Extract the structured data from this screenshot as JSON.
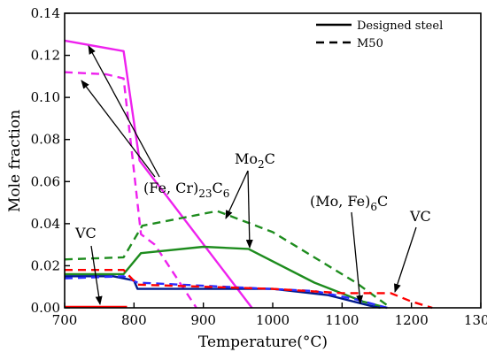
{
  "chart_data": {
    "type": "line",
    "xlabel": "Temperature(°C)",
    "ylabel": "Mole fraction",
    "xlim": [
      700,
      1300
    ],
    "ylim": [
      0,
      0.14
    ],
    "x_ticks": [
      "700",
      "800",
      "900",
      "1000",
      "1100",
      "1200",
      "1300"
    ],
    "y_ticks": [
      "0.00",
      "0.02",
      "0.04",
      "0.06",
      "0.08",
      "0.10",
      "0.12",
      "0.14"
    ],
    "grid": false,
    "legend": {
      "position": "top-right",
      "entries": [
        {
          "label": "Designed steel",
          "style": "solid"
        },
        {
          "label": "M50",
          "style": "dashed"
        }
      ]
    },
    "series": [
      {
        "key": "designed_fecr23c6",
        "style": "solid",
        "color": "#ee22ee",
        "x": [
          700,
          785,
          808,
          970
        ],
        "y": [
          0.127,
          0.122,
          0.07,
          0.0
        ]
      },
      {
        "key": "m50_fecr23c6",
        "style": "dashed",
        "color": "#ee22ee",
        "x": [
          700,
          760,
          785,
          800,
          810,
          830,
          890
        ],
        "y": [
          0.112,
          0.111,
          0.109,
          0.065,
          0.035,
          0.03,
          0.0
        ]
      },
      {
        "key": "designed_mo2c",
        "style": "solid",
        "color": "#1e8c1e",
        "x": [
          700,
          785,
          810,
          900,
          965,
          1060,
          1130,
          1165
        ],
        "y": [
          0.016,
          0.016,
          0.026,
          0.029,
          0.028,
          0.012,
          0.003,
          0.0
        ]
      },
      {
        "key": "m50_mo2c",
        "style": "dashed",
        "color": "#1e8c1e",
        "x": [
          700,
          785,
          812,
          920,
          1000,
          1120,
          1170
        ],
        "y": [
          0.023,
          0.024,
          0.039,
          0.046,
          0.036,
          0.012,
          0.0
        ]
      },
      {
        "key": "designed_mofe6c",
        "style": "solid",
        "color": "#001a8c",
        "x": [
          700,
          770,
          800,
          805,
          1000,
          1080,
          1140,
          1155
        ],
        "y": [
          0.015,
          0.015,
          0.013,
          0.009,
          0.009,
          0.006,
          0.001,
          0.0
        ]
      },
      {
        "key": "m50_mofe6c",
        "style": "dashed",
        "color": "#2b2bff",
        "x": [
          700,
          785,
          805,
          1060,
          1120,
          1165
        ],
        "y": [
          0.014,
          0.015,
          0.012,
          0.008,
          0.004,
          0.0
        ]
      },
      {
        "key": "m50_vc",
        "style": "dashed",
        "color": "#ff0000",
        "x": [
          700,
          785,
          805,
          1000,
          1100,
          1170,
          1200,
          1230
        ],
        "y": [
          0.018,
          0.018,
          0.011,
          0.009,
          0.007,
          0.007,
          0.003,
          0.0
        ]
      },
      {
        "key": "designed_vc",
        "style": "solid",
        "color": "#ff0000",
        "x": [
          700,
          790
        ],
        "y": [
          0.0004,
          0.0004
        ]
      }
    ],
    "annotations": [
      {
        "label_base": "(Fe, Cr)",
        "label_sub": "23",
        "label_tail": "C",
        "label_sub2": "6"
      },
      {
        "label_base": "Mo",
        "label_sub": "2",
        "label_tail": "C",
        "label_sub2": ""
      },
      {
        "label_base": "(Mo, Fe)",
        "label_sub": "6",
        "label_tail": "C",
        "label_sub2": ""
      },
      {
        "label_base": "VC",
        "label_sub": "",
        "label_tail": "",
        "label_sub2": ""
      },
      {
        "label_base": "VC",
        "label_sub": "",
        "label_tail": "",
        "label_sub2": ""
      }
    ]
  }
}
